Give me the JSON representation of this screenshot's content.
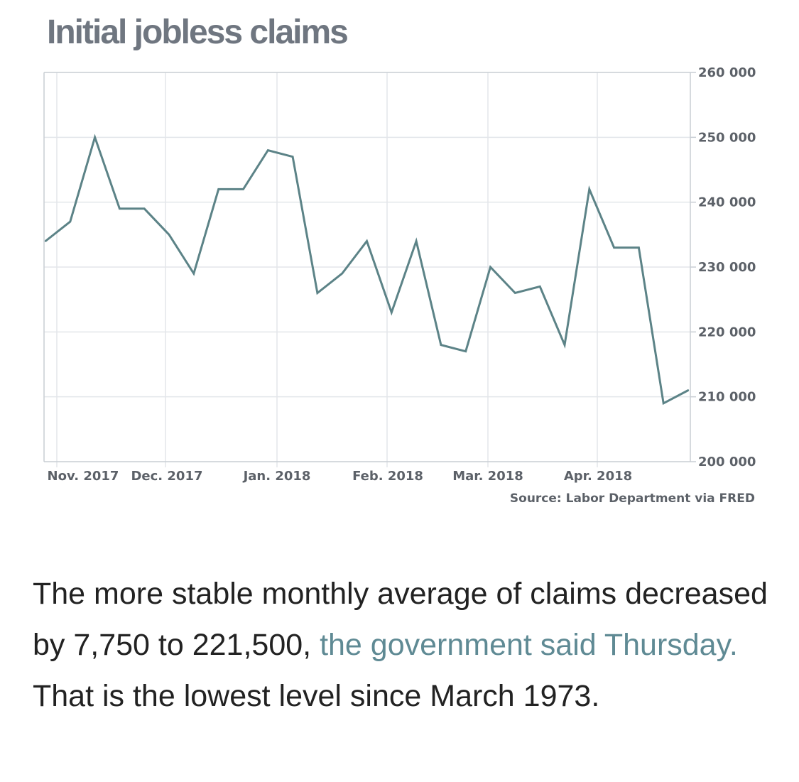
{
  "colors": {
    "line": "#5c8387",
    "grid": "#e3e6ea",
    "axis_text": "#5c6168",
    "title": "#6f7680",
    "link": "#5f8a94",
    "body_text": "#222222"
  },
  "chart_data": {
    "type": "line",
    "title": "Initial jobless claims",
    "xlabel": "",
    "ylabel": "",
    "x_tick_labels": [
      "Nov. 2017",
      "Dec. 2017",
      "Jan. 2018",
      "Feb. 2018",
      "Mar. 2018",
      "Apr. 2018"
    ],
    "y_tick_labels": [
      "260 000",
      "250 000",
      "240 000",
      "230 000",
      "220 000",
      "210 000",
      "200 000"
    ],
    "ylim": [
      200000,
      260000
    ],
    "grid": true,
    "y_axis_side": "right",
    "source": "Source: Labor Department via FRED",
    "series": [
      {
        "values": [
          234000,
          237000,
          250000,
          239000,
          239000,
          235000,
          229000,
          242000,
          242000,
          248000,
          247000,
          226000,
          229000,
          234000,
          223000,
          234000,
          218000,
          217000,
          230000,
          226000,
          227000,
          218000,
          242000,
          233000,
          233000,
          209000,
          211000
        ]
      }
    ]
  },
  "body": {
    "text_before": "The more stable monthly average of claims decreased by 7,750 to 221,500, ",
    "link_text": "the government said Thursday.",
    "text_after": " That is the lowest level since March 1973."
  }
}
